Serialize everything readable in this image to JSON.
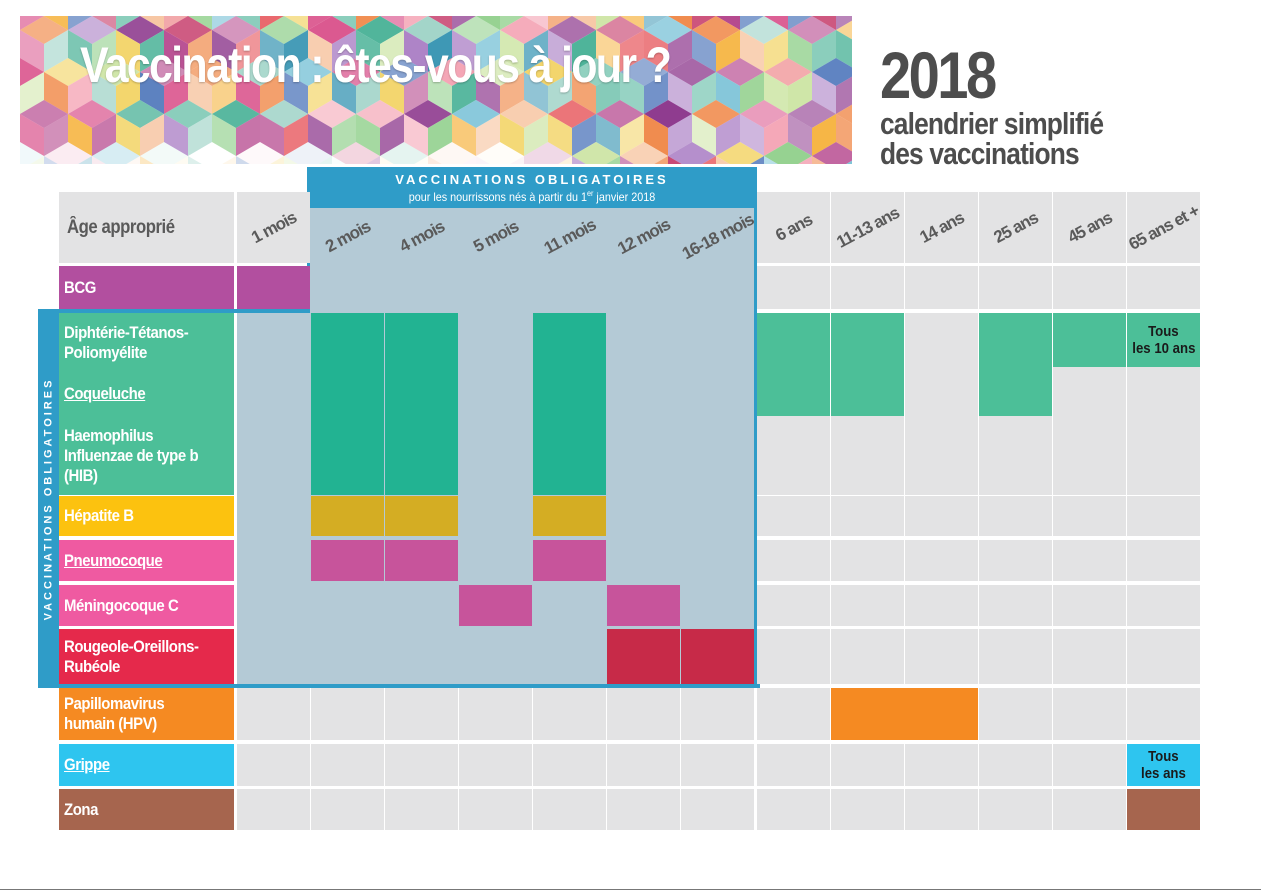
{
  "header": {
    "title": "Vaccination : êtes-vous à jour ?",
    "year": "2018",
    "subtitle_line1": "calendrier simplifié",
    "subtitle_line2": "des vaccinations"
  },
  "mandatory_header": {
    "title": "VACCINATIONS OBLIGATOIRES",
    "subtitle_pre": "pour les nourrissons nés à partir du 1",
    "subtitle_sup": "er",
    "subtitle_post": " janvier 2018"
  },
  "mandatory_side_label": "VACCINATIONS OBLIGATOIRES",
  "age_header_label": "Âge approprié",
  "ages": [
    "1 mois",
    "2 mois",
    "4 mois",
    "5 mois",
    "11 mois",
    "12 mois",
    "16-18 mois",
    "6 ans",
    "11-13 ans",
    "14 ans",
    "25 ans",
    "45 ans",
    "65 ans et +"
  ],
  "vaccines": [
    {
      "id": "bcg",
      "lines": [
        "BCG"
      ],
      "underline": false,
      "color": "#b24f9f"
    },
    {
      "id": "dtp",
      "lines": [
        "Diphtérie-Tétanos-",
        "Poliomyélite"
      ],
      "underline": false,
      "color": "#4cbf98"
    },
    {
      "id": "coqueluche",
      "lines": [
        "Coqueluche"
      ],
      "underline": true,
      "color": "#4cbf98"
    },
    {
      "id": "hib",
      "lines": [
        "Haemophilus",
        "Influenzae de type b",
        "(HIB)"
      ],
      "underline": false,
      "color": "#4cbf98"
    },
    {
      "id": "hepb",
      "lines": [
        "Hépatite B"
      ],
      "underline": false,
      "color": "#fcc20f"
    },
    {
      "id": "pneumo",
      "lines": [
        "Pneumocoque"
      ],
      "underline": true,
      "color": "#ef5aa1"
    },
    {
      "id": "menc",
      "lines": [
        "Méningocoque C"
      ],
      "underline": false,
      "color": "#ef5aa1"
    },
    {
      "id": "ror",
      "lines": [
        "Rougeole-Oreillons-",
        "Rubéole"
      ],
      "underline": false,
      "color": "#e5294b"
    },
    {
      "id": "hpv",
      "lines": [
        "Papillomavirus",
        "humain (HPV)"
      ],
      "underline": false,
      "color": "#f58a22"
    },
    {
      "id": "grippe",
      "lines": [
        "Grippe"
      ],
      "underline": true,
      "color": "#2ec5ef"
    },
    {
      "id": "zona",
      "lines": [
        "Zona"
      ],
      "underline": false,
      "color": "#a6654e"
    }
  ],
  "notes": {
    "dtp_65": [
      "Tous",
      "les 10 ans"
    ],
    "grippe_65": [
      "Tous",
      "les ans"
    ]
  },
  "colors": {
    "dtp_dose": "#22b392",
    "dtp_booster": "#4cbf98",
    "hepb_dose": "#d4ad23",
    "pneumo_dose": "#c7549b",
    "menc_dose": "#c7549b",
    "ror_dose": "#c72a48",
    "hpv_dose": "#f58a22",
    "grippe_dose": "#2ec5ef",
    "zona_dose": "#a6654e",
    "empty": "#e3e3e4",
    "mandatory_bg": "#b4cad6",
    "mandatory_border": "#2f9cc8"
  }
}
